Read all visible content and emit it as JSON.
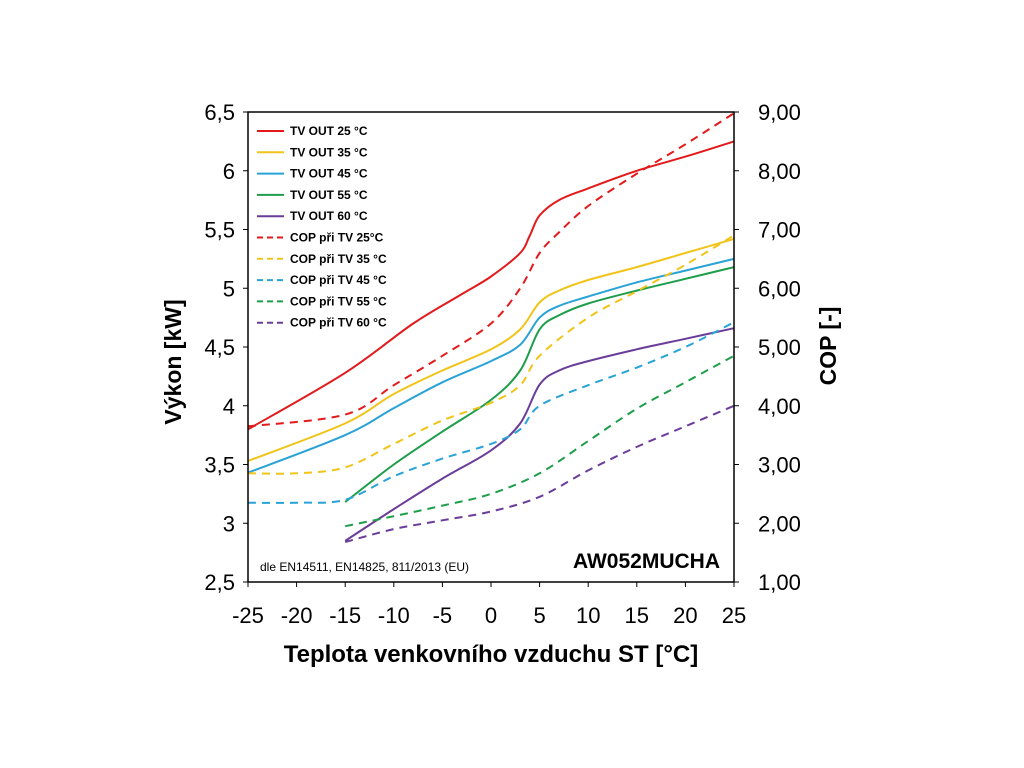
{
  "chart_data": {
    "type": "line",
    "xlabel": "Teplota venkovního vzduchu ST [°C]",
    "ylabel_left": "Výkon [kW]",
    "ylabel_right": "COP [-]",
    "model_label": "AW052MUCHA",
    "note": "dle EN14511, EN14825, 811/2013 (EU)",
    "xlim": [
      -25,
      25
    ],
    "ylim_left": [
      2.5,
      6.5
    ],
    "ylim_right": [
      1.0,
      9.0
    ],
    "x_ticks": [
      "-25",
      "-20",
      "-15",
      "-10",
      "-5",
      "0",
      "5",
      "10",
      "15",
      "20",
      "25"
    ],
    "y_ticks_left": [
      "2,5",
      "3",
      "3,5",
      "4",
      "4,5",
      "5",
      "5,5",
      "6",
      "6,5"
    ],
    "y_ticks_right": [
      "1,00",
      "2,00",
      "3,00",
      "4,00",
      "5,00",
      "6,00",
      "7,00",
      "8,00",
      "9,00"
    ],
    "legend_position": "top-left",
    "grid": false,
    "series": [
      {
        "name": "TV OUT 25 °C",
        "axis": "left",
        "style": "solid",
        "color": "#e31a1c",
        "points": [
          [
            -25,
            3.8
          ],
          [
            -15,
            4.28
          ],
          [
            -8,
            4.7
          ],
          [
            -3,
            4.95
          ],
          [
            0,
            5.1
          ],
          [
            3,
            5.3
          ],
          [
            4,
            5.45
          ],
          [
            5,
            5.62
          ],
          [
            7,
            5.75
          ],
          [
            10,
            5.85
          ],
          [
            15,
            6.0
          ],
          [
            20,
            6.12
          ],
          [
            25,
            6.25
          ]
        ]
      },
      {
        "name": "TV OUT 35 °C",
        "axis": "left",
        "style": "solid",
        "color": "#f0c419",
        "points": [
          [
            -25,
            3.53
          ],
          [
            -15,
            3.85
          ],
          [
            -10,
            4.1
          ],
          [
            -5,
            4.3
          ],
          [
            0,
            4.48
          ],
          [
            3,
            4.65
          ],
          [
            5,
            4.88
          ],
          [
            7,
            4.98
          ],
          [
            10,
            5.07
          ],
          [
            15,
            5.18
          ],
          [
            20,
            5.3
          ],
          [
            25,
            5.42
          ]
        ]
      },
      {
        "name": "TV OUT 45 °C",
        "axis": "left",
        "style": "solid",
        "color": "#29a3d6",
        "points": [
          [
            -25,
            3.43
          ],
          [
            -15,
            3.75
          ],
          [
            -10,
            3.98
          ],
          [
            -5,
            4.2
          ],
          [
            0,
            4.38
          ],
          [
            3,
            4.52
          ],
          [
            5,
            4.75
          ],
          [
            7,
            4.85
          ],
          [
            10,
            4.93
          ],
          [
            15,
            5.05
          ],
          [
            20,
            5.15
          ],
          [
            25,
            5.25
          ]
        ]
      },
      {
        "name": "TV OUT 55 °C",
        "axis": "left",
        "style": "solid",
        "color": "#1e9e4a",
        "points": [
          [
            -15,
            3.18
          ],
          [
            -10,
            3.5
          ],
          [
            -5,
            3.78
          ],
          [
            0,
            4.05
          ],
          [
            3,
            4.3
          ],
          [
            5,
            4.65
          ],
          [
            7,
            4.77
          ],
          [
            10,
            4.87
          ],
          [
            15,
            4.98
          ],
          [
            20,
            5.08
          ],
          [
            25,
            5.18
          ]
        ]
      },
      {
        "name": "TV OUT 60 °C",
        "axis": "left",
        "style": "solid",
        "color": "#6a3d9a",
        "points": [
          [
            -15,
            2.85
          ],
          [
            -10,
            3.12
          ],
          [
            -5,
            3.38
          ],
          [
            0,
            3.62
          ],
          [
            3,
            3.85
          ],
          [
            5,
            4.18
          ],
          [
            7,
            4.3
          ],
          [
            10,
            4.38
          ],
          [
            15,
            4.48
          ],
          [
            20,
            4.57
          ],
          [
            25,
            4.66
          ]
        ]
      },
      {
        "name": "COP při TV 25°C",
        "axis": "right",
        "style": "dashed",
        "color": "#e31a1c",
        "points": [
          [
            -25,
            3.65
          ],
          [
            -15,
            3.85
          ],
          [
            -10,
            4.35
          ],
          [
            -5,
            4.85
          ],
          [
            0,
            5.4
          ],
          [
            3,
            6.0
          ],
          [
            5,
            6.6
          ],
          [
            7,
            6.95
          ],
          [
            10,
            7.4
          ],
          [
            15,
            7.95
          ],
          [
            20,
            8.45
          ],
          [
            25,
            8.98
          ]
        ]
      },
      {
        "name": "COP při TV 35 °C",
        "axis": "right",
        "style": "dashed",
        "color": "#f0c419",
        "points": [
          [
            -25,
            2.85
          ],
          [
            -20,
            2.85
          ],
          [
            -15,
            2.95
          ],
          [
            -10,
            3.35
          ],
          [
            -5,
            3.75
          ],
          [
            0,
            4.05
          ],
          [
            3,
            4.35
          ],
          [
            5,
            4.85
          ],
          [
            10,
            5.5
          ],
          [
            15,
            5.95
          ],
          [
            20,
            6.4
          ],
          [
            25,
            6.9
          ]
        ]
      },
      {
        "name": "COP při TV 45 °C",
        "axis": "right",
        "style": "dashed",
        "color": "#29a3d6",
        "points": [
          [
            -25,
            2.35
          ],
          [
            -20,
            2.35
          ],
          [
            -15,
            2.4
          ],
          [
            -10,
            2.8
          ],
          [
            -5,
            3.1
          ],
          [
            0,
            3.35
          ],
          [
            3,
            3.6
          ],
          [
            5,
            4.0
          ],
          [
            10,
            4.35
          ],
          [
            15,
            4.65
          ],
          [
            20,
            5.0
          ],
          [
            25,
            5.42
          ]
        ]
      },
      {
        "name": "COP při TV 55 °C",
        "axis": "right",
        "style": "dashed",
        "color": "#1e9e4a",
        "points": [
          [
            -15,
            1.95
          ],
          [
            -10,
            2.12
          ],
          [
            -5,
            2.3
          ],
          [
            0,
            2.5
          ],
          [
            5,
            2.85
          ],
          [
            10,
            3.4
          ],
          [
            15,
            3.95
          ],
          [
            20,
            4.4
          ],
          [
            25,
            4.85
          ]
        ]
      },
      {
        "name": "COP při TV 60 °C",
        "axis": "right",
        "style": "dashed",
        "color": "#6a3d9a",
        "points": [
          [
            -15,
            1.68
          ],
          [
            -10,
            1.9
          ],
          [
            -5,
            2.05
          ],
          [
            0,
            2.2
          ],
          [
            5,
            2.45
          ],
          [
            10,
            2.9
          ],
          [
            15,
            3.3
          ],
          [
            20,
            3.65
          ],
          [
            25,
            4.0
          ]
        ]
      }
    ]
  }
}
